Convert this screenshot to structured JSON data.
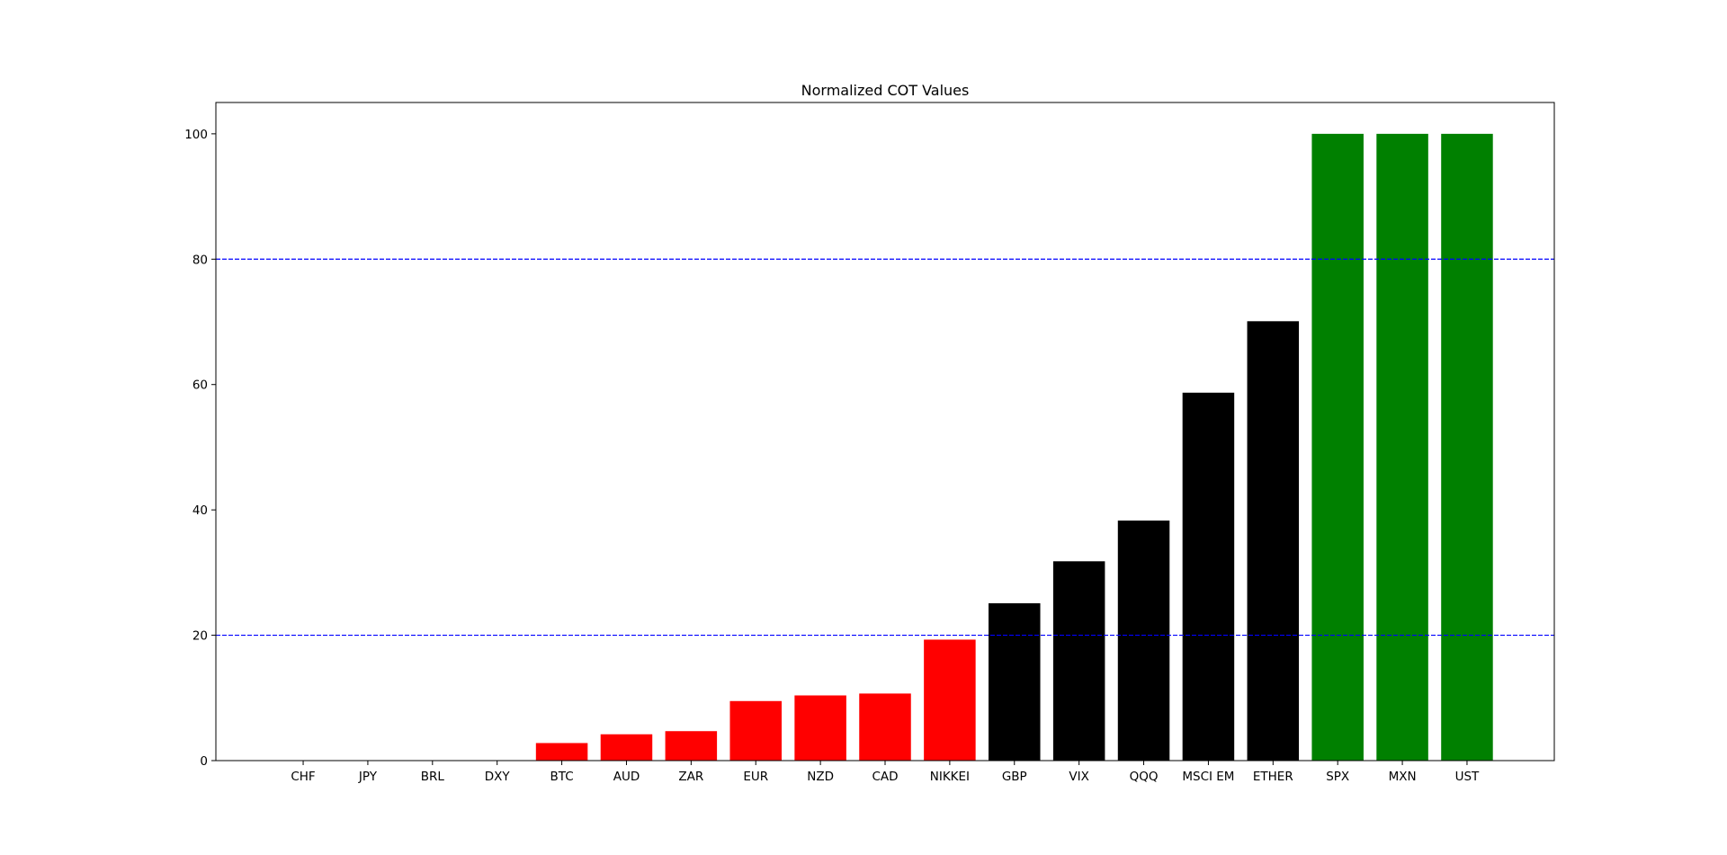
{
  "chart_data": {
    "type": "bar",
    "title": "Normalized COT Values",
    "categories": [
      "CHF",
      "JPY",
      "BRL",
      "DXY",
      "BTC",
      "AUD",
      "ZAR",
      "EUR",
      "NZD",
      "CAD",
      "NIKKEI",
      "GBP",
      "VIX",
      "QQQ",
      "MSCI EM",
      "ETHER",
      "SPX",
      "MXN",
      "UST"
    ],
    "values": [
      0,
      0,
      0,
      0,
      2.8,
      4.2,
      4.7,
      9.5,
      10.4,
      10.7,
      19.3,
      25.1,
      31.8,
      38.3,
      58.7,
      70.1,
      100,
      100,
      100
    ],
    "colors": [
      "#ff0000",
      "#ff0000",
      "#ff0000",
      "#ff0000",
      "#ff0000",
      "#ff0000",
      "#ff0000",
      "#ff0000",
      "#ff0000",
      "#ff0000",
      "#ff0000",
      "#000000",
      "#000000",
      "#000000",
      "#000000",
      "#000000",
      "#008000",
      "#008000",
      "#008000"
    ],
    "xlim": [
      -1.35,
      19.35
    ],
    "ylim": [
      0,
      105
    ],
    "yticks": [
      0,
      20,
      40,
      60,
      80,
      100
    ],
    "hlines": [
      20,
      80
    ],
    "hline_color": "#0000ff"
  }
}
